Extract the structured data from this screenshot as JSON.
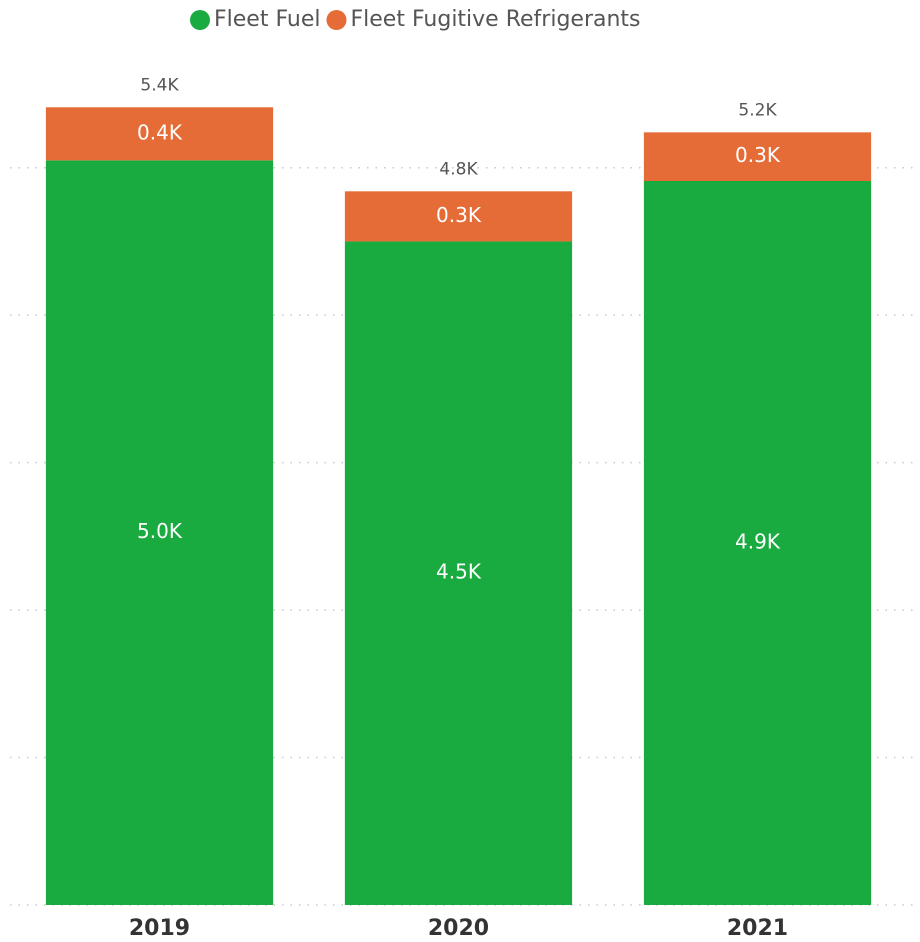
{
  "chart_data": {
    "type": "stacked_bar",
    "categories": [
      "2019",
      "2020",
      "2021"
    ],
    "series": [
      {
        "name": "Fleet Fuel",
        "color": "#1aab40",
        "values": [
          5050,
          4500,
          4910
        ],
        "value_labels": [
          "5.0K",
          "4.5K",
          "4.9K"
        ]
      },
      {
        "name": "Fleet Fugitive Refrigerants",
        "color": "#e66c37",
        "values": [
          360,
          340,
          330
        ],
        "value_labels": [
          "0.4K",
          "0.3K",
          "0.3K"
        ]
      }
    ],
    "totals": [
      5410,
      4840,
      5240
    ],
    "total_labels": [
      "5.4K",
      "4.8K",
      "5.2K"
    ],
    "ylim": [
      0,
      5500
    ],
    "yticks": [
      0,
      1000,
      2000,
      3000,
      4000,
      5000
    ],
    "grid": true,
    "legend": "top"
  }
}
